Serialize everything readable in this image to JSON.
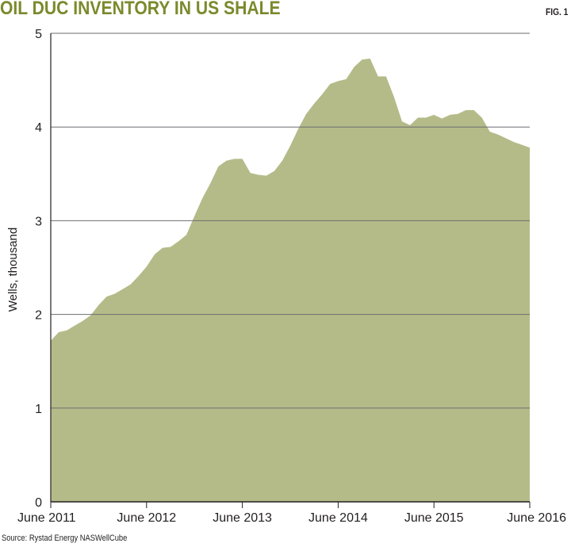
{
  "header": {
    "title": "OIL DUC INVENTORY IN US SHALE",
    "fig": "FIG. 1"
  },
  "footer": {
    "source": "Source: Rystad Energy NASWellCube"
  },
  "colors": {
    "area": "#b4bb88",
    "title": "#7a8a2c",
    "grid": "#6d6e71",
    "text": "#231f20"
  },
  "chart_data": {
    "type": "area",
    "title": "OIL DUC INVENTORY IN US SHALE",
    "xlabel": "",
    "ylabel": "Wells, thousand",
    "ylim": [
      0,
      5
    ],
    "yticks": [
      "0",
      "1",
      "2",
      "3",
      "4",
      "5"
    ],
    "xlim": [
      "June 2011",
      "June 2016"
    ],
    "xticks": [
      "June 2011",
      "June 2012",
      "June 2013",
      "June 2014",
      "June 2015",
      "June 2016"
    ],
    "grid": "horizontal",
    "x_month_index_from_june_2011": [
      0,
      1,
      2,
      3,
      4,
      5,
      6,
      7,
      8,
      9,
      10,
      11,
      12,
      13,
      14,
      15,
      16,
      17,
      18,
      19,
      20,
      21,
      22,
      23,
      24,
      25,
      26,
      27,
      28,
      29,
      30,
      31,
      32,
      33,
      34,
      35,
      36,
      37,
      38,
      39,
      40,
      41,
      42,
      43,
      44,
      45,
      46,
      47,
      48,
      49,
      50,
      51,
      52,
      53,
      54,
      55,
      56,
      57,
      58,
      59,
      60
    ],
    "x": [
      "2011-06",
      "2011-07",
      "2011-08",
      "2011-09",
      "2011-10",
      "2011-11",
      "2011-12",
      "2012-01",
      "2012-02",
      "2012-03",
      "2012-04",
      "2012-05",
      "2012-06",
      "2012-07",
      "2012-08",
      "2012-09",
      "2012-10",
      "2012-11",
      "2012-12",
      "2013-01",
      "2013-02",
      "2013-03",
      "2013-04",
      "2013-05",
      "2013-06",
      "2013-07",
      "2013-08",
      "2013-09",
      "2013-10",
      "2013-11",
      "2013-12",
      "2014-01",
      "2014-02",
      "2014-03",
      "2014-04",
      "2014-05",
      "2014-06",
      "2014-07",
      "2014-08",
      "2014-09",
      "2014-10",
      "2014-11",
      "2014-12",
      "2015-01",
      "2015-02",
      "2015-03",
      "2015-04",
      "2015-05",
      "2015-06",
      "2015-07",
      "2015-08",
      "2015-09",
      "2015-10",
      "2015-11",
      "2015-12",
      "2016-01",
      "2016-02",
      "2016-03",
      "2016-04",
      "2016-05",
      "2016-06"
    ],
    "series": [
      {
        "name": "",
        "values": [
          1.72,
          1.81,
          1.83,
          1.88,
          1.93,
          1.99,
          2.1,
          2.19,
          2.22,
          2.27,
          2.32,
          2.41,
          2.51,
          2.64,
          2.71,
          2.72,
          2.78,
          2.85,
          3.05,
          3.24,
          3.4,
          3.58,
          3.64,
          3.66,
          3.66,
          3.51,
          3.49,
          3.48,
          3.53,
          3.64,
          3.8,
          3.98,
          4.14,
          4.25,
          4.35,
          4.46,
          4.49,
          4.51,
          4.64,
          4.72,
          4.73,
          4.54,
          4.54,
          4.32,
          4.06,
          4.02,
          4.1,
          4.1,
          4.13,
          4.09,
          4.13,
          4.14,
          4.18,
          4.18,
          4.1,
          3.95,
          3.92,
          3.88,
          3.84,
          3.81,
          3.78
        ]
      }
    ]
  }
}
